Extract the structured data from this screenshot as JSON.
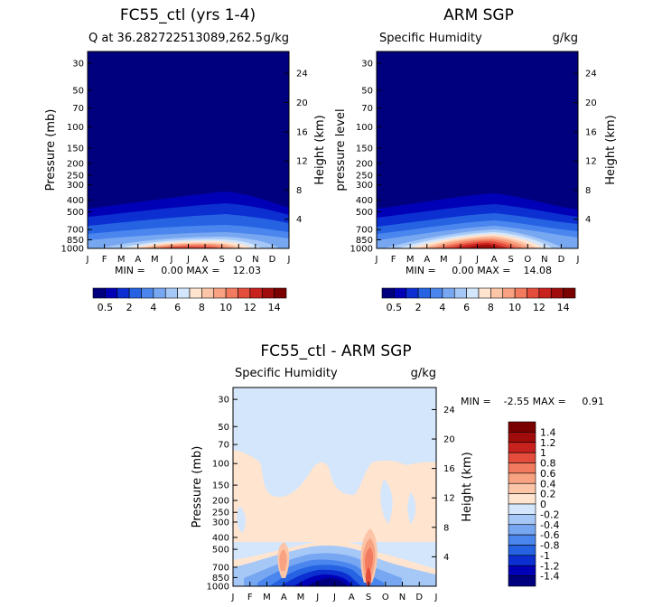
{
  "chart_data": [
    {
      "type": "heatmap",
      "title": "FC55_ctl (yrs 1-4)",
      "subtitle_left": "Q at 36.282722513089,262.5",
      "subtitle_right": "g/kg",
      "ylabel": "Pressure (mb)",
      "ylabel_right": "Height (km)",
      "y_ticks": [
        "30",
        "50",
        "70",
        "100",
        "150",
        "200",
        "250",
        "300",
        "400",
        "500",
        "700",
        "850",
        "1000"
      ],
      "height_ticks": [
        "24",
        "20",
        "16",
        "12",
        "8",
        "4"
      ],
      "x_ticks": [
        "J",
        "F",
        "M",
        "A",
        "M",
        "J",
        "J",
        "A",
        "S",
        "O",
        "N",
        "D",
        "J"
      ],
      "stats": "MIN =     0.00 MAX =    12.03",
      "colorbar_labels": [
        "0.5",
        "2",
        "4",
        "6",
        "8",
        "10",
        "12",
        "14"
      ],
      "min": 0.0,
      "max": 12.03
    },
    {
      "type": "heatmap",
      "title": "ARM SGP",
      "subtitle_left": "Specific Humidity",
      "subtitle_right": "g/kg",
      "ylabel": "pressure level",
      "ylabel_right": "Height (km)",
      "y_ticks": [
        "30",
        "50",
        "70",
        "100",
        "150",
        "200",
        "250",
        "300",
        "400",
        "500",
        "700",
        "850",
        "1000"
      ],
      "height_ticks": [
        "24",
        "20",
        "16",
        "12",
        "8",
        "4"
      ],
      "x_ticks": [
        "J",
        "F",
        "M",
        "A",
        "M",
        "J",
        "J",
        "A",
        "S",
        "O",
        "N",
        "D",
        "J"
      ],
      "stats": "MIN =     0.00 MAX =    14.08",
      "colorbar_labels": [
        "0.5",
        "2",
        "4",
        "6",
        "8",
        "10",
        "12",
        "14"
      ],
      "min": 0.0,
      "max": 14.08
    },
    {
      "type": "heatmap",
      "title": "FC55_ctl - ARM SGP",
      "subtitle_left": "Specific Humidity",
      "subtitle_right": "g/kg",
      "ylabel": "Pressure (mb)",
      "ylabel_right": "Height (km)",
      "y_ticks": [
        "30",
        "50",
        "70",
        "100",
        "150",
        "200",
        "250",
        "300",
        "400",
        "500",
        "700",
        "850",
        "1000"
      ],
      "height_ticks": [
        "24",
        "20",
        "16",
        "12",
        "8",
        "4"
      ],
      "x_ticks": [
        "J",
        "F",
        "M",
        "A",
        "M",
        "J",
        "J",
        "A",
        "S",
        "O",
        "N",
        "D",
        "J"
      ],
      "stats": "MIN =    -2.55 MAX =     0.91",
      "colorbar_labels": [
        "1.4",
        "1.2",
        "1",
        "0.8",
        "0.6",
        "0.4",
        "0.2",
        "0",
        "-0.2",
        "-0.4",
        "-0.6",
        "-0.8",
        "-1",
        "-1.2",
        "-1.4"
      ],
      "min": -2.55,
      "max": 0.91
    }
  ],
  "colors": {
    "seq": [
      "#00007f",
      "#0000b7",
      "#0b2fd0",
      "#2563e3",
      "#4a86ee",
      "#78a7f2",
      "#a6c8f7",
      "#d3e6fb",
      "#ffe4d0",
      "#fcc5a8",
      "#f8a281",
      "#f27a5e",
      "#e44c3c",
      "#c8221f",
      "#a00c0c",
      "#7a0000"
    ],
    "div": [
      "#00007f",
      "#0000b7",
      "#0b2fd0",
      "#2563e3",
      "#4a86ee",
      "#78a7f2",
      "#a6c8f7",
      "#d3e6fb",
      "#ffe4d0",
      "#fcc5a8",
      "#f8a281",
      "#f27a5e",
      "#e44c3c",
      "#c8221f",
      "#a00c0c",
      "#7a0000"
    ]
  }
}
